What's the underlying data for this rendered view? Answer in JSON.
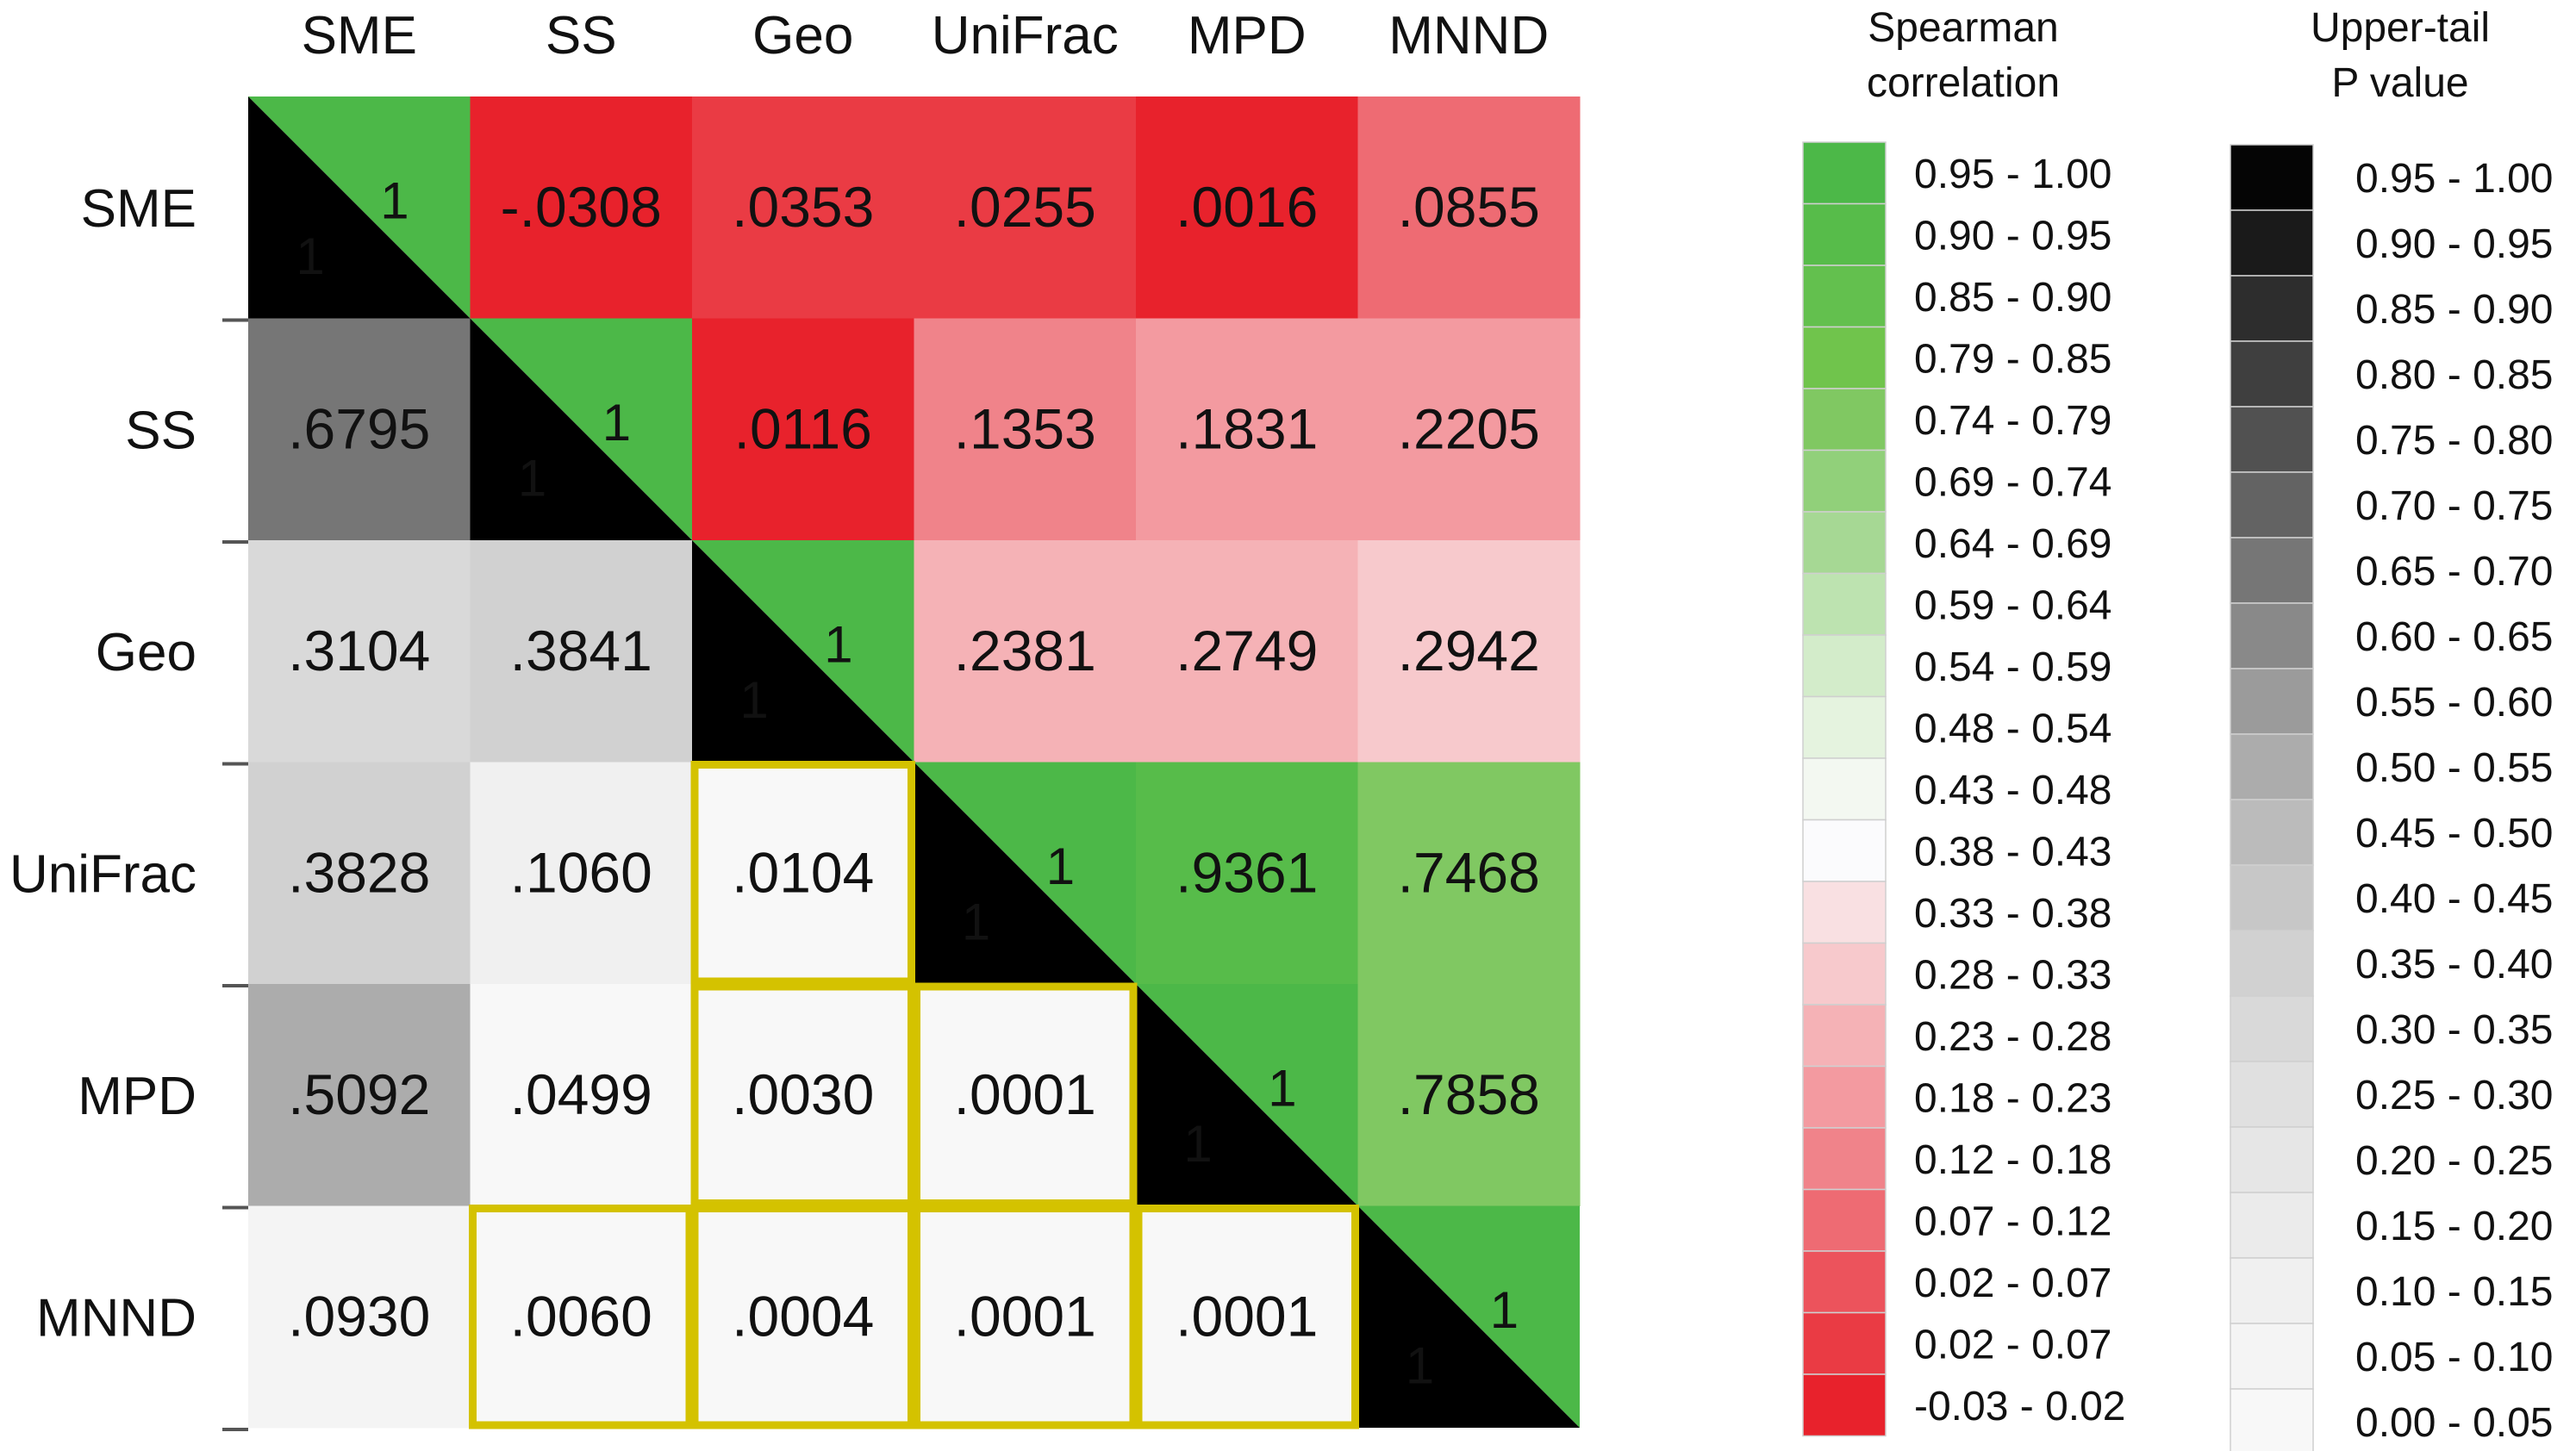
{
  "chart_data": {
    "type": "heatmap",
    "title": "",
    "variables": [
      "SME",
      "SS",
      "Geo",
      "UniFrac",
      "MPD",
      "MNND"
    ],
    "diagonal_label": "1",
    "upper_triangle": {
      "meaning": "Spearman correlation",
      "values": [
        [
          "-.0308",
          ".0353",
          ".0255",
          ".0016",
          ".0855"
        ],
        [
          ".0116",
          ".1353",
          ".1831",
          ".2205"
        ],
        [
          ".2381",
          ".2749",
          ".2942"
        ],
        [
          ".9361",
          ".7468"
        ],
        [
          ".7858"
        ]
      ]
    },
    "lower_triangle": {
      "meaning": "Upper-tail P value",
      "values": [
        [
          ".6795"
        ],
        [
          ".3104",
          ".3841"
        ],
        [
          ".3828",
          ".1060",
          ".0104"
        ],
        [
          ".5092",
          ".0499",
          ".0030",
          ".0001"
        ],
        [
          ".0930",
          ".0060",
          ".0004",
          ".0001",
          ".0001"
        ]
      ]
    },
    "highlight_color": "#d4c200",
    "highlight_cells": [
      [
        3,
        2
      ],
      [
        4,
        2
      ],
      [
        4,
        3
      ],
      [
        5,
        1
      ],
      [
        5,
        2
      ],
      [
        5,
        3
      ],
      [
        5,
        4
      ]
    ],
    "legend_correlation": {
      "title_line1": "Spearman",
      "title_line2": "correlation",
      "entries": [
        {
          "label": "0.95 - 1.00",
          "color": "#4cb848"
        },
        {
          "label": "0.90 - 0.95",
          "color": "#57bc4a"
        },
        {
          "label": "0.85 - 0.90",
          "color": "#63c04e"
        },
        {
          "label": "0.79 - 0.85",
          "color": "#70c44c"
        },
        {
          "label": "0.74 - 0.79",
          "color": "#80c862"
        },
        {
          "label": "0.69 - 0.74",
          "color": "#91d07a"
        },
        {
          "label": "0.64 - 0.69",
          "color": "#a6d894"
        },
        {
          "label": "0.59 - 0.64",
          "color": "#bde3b0"
        },
        {
          "label": "0.54 - 0.59",
          "color": "#d3ecca"
        },
        {
          "label": "0.48 - 0.54",
          "color": "#e5f3df"
        },
        {
          "label": "0.43 - 0.48",
          "color": "#f3f8f1"
        },
        {
          "label": "0.38 - 0.43",
          "color": "#fbfbfd"
        },
        {
          "label": "0.33 - 0.38",
          "color": "#f9e0e2"
        },
        {
          "label": "0.28 - 0.33",
          "color": "#f7c9cc"
        },
        {
          "label": "0.23 - 0.28",
          "color": "#f5b2b6"
        },
        {
          "label": "0.18 - 0.23",
          "color": "#f39aa0"
        },
        {
          "label": "0.12 - 0.18",
          "color": "#f0838a"
        },
        {
          "label": "0.07 - 0.12",
          "color": "#ee6b73"
        },
        {
          "label": "0.02 - 0.07",
          "color": "#ec535c"
        },
        {
          "label": "0.02 - 0.07",
          "color": "#ea3b44"
        },
        {
          "label": "-0.03 - 0.02",
          "color": "#e8222c"
        }
      ]
    },
    "legend_pvalue": {
      "title_line1": "Upper-tail",
      "title_line2": "P value",
      "entries": [
        {
          "label": "0.95 - 1.00",
          "color": "#050505"
        },
        {
          "label": "0.90 - 0.95",
          "color": "#1a1a1a"
        },
        {
          "label": "0.85 - 0.90",
          "color": "#2d2d2d"
        },
        {
          "label": "0.80 - 0.85",
          "color": "#3f3f3f"
        },
        {
          "label": "0.75 - 0.80",
          "color": "#515151"
        },
        {
          "label": "0.70 - 0.75",
          "color": "#636363"
        },
        {
          "label": "0.65 - 0.70",
          "color": "#767676"
        },
        {
          "label": "0.60 - 0.65",
          "color": "#898989"
        },
        {
          "label": "0.55 - 0.60",
          "color": "#9b9b9b"
        },
        {
          "label": "0.50 - 0.55",
          "color": "#acacac"
        },
        {
          "label": "0.45 - 0.50",
          "color": "#bbbbbb"
        },
        {
          "label": "0.40 - 0.45",
          "color": "#c7c7c7"
        },
        {
          "label": "0.35 - 0.40",
          "color": "#d1d1d1"
        },
        {
          "label": "0.30 - 0.35",
          "color": "#d9d9d9"
        },
        {
          "label": "0.25 - 0.30",
          "color": "#e0e0e0"
        },
        {
          "label": "0.20 - 0.25",
          "color": "#e6e6e6"
        },
        {
          "label": "0.15 - 0.20",
          "color": "#ebebeb"
        },
        {
          "label": "0.10 - 0.15",
          "color": "#f0f0f0"
        },
        {
          "label": "0.05 - 0.10",
          "color": "#f4f4f4"
        },
        {
          "label": "0.00 - 0.05",
          "color": "#f8f8f8"
        }
      ]
    }
  }
}
